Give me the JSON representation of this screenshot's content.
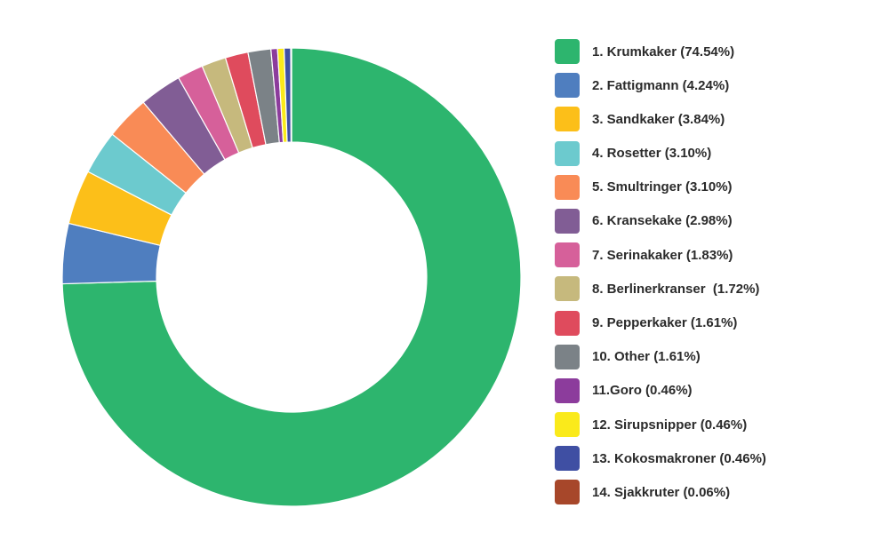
{
  "chart_data": {
    "type": "pie",
    "variant": "donut",
    "title": "",
    "legend_position": "right",
    "start_angle_position": "top",
    "direction": "clockwise",
    "slices": [
      {
        "label": "1. Krumkaker (74.54%)",
        "value": 74.54,
        "color": "#2db56e"
      },
      {
        "label": "2. Fattigmann (4.24%)",
        "value": 4.24,
        "color": "#4f7ebf"
      },
      {
        "label": "3. Sandkaker (3.84%)",
        "value": 3.84,
        "color": "#fcbf19"
      },
      {
        "label": "4. Rosetter (3.10%)",
        "value": 3.1,
        "color": "#6ccace"
      },
      {
        "label": "5. Smultringer (3.10%)",
        "value": 3.1,
        "color": "#f98b56"
      },
      {
        "label": "6. Kransekake (2.98%)",
        "value": 2.98,
        "color": "#815d95"
      },
      {
        "label": "7. Serinakaker (1.83%)",
        "value": 1.83,
        "color": "#d6609a"
      },
      {
        "label": "8. Berlinerkranser  (1.72%)",
        "value": 1.72,
        "color": "#c6b97d"
      },
      {
        "label": "9. Pepperkaker (1.61%)",
        "value": 1.61,
        "color": "#df4b5d"
      },
      {
        "label": "10. Other (1.61%)",
        "value": 1.61,
        "color": "#7b8287"
      },
      {
        "label": "11.Goro (0.46%)",
        "value": 0.46,
        "color": "#8c3c9c"
      },
      {
        "label": "12. Sirupsnipper (0.46%)",
        "value": 0.46,
        "color": "#faea1b"
      },
      {
        "label": "13. Kokosmakroner (0.46%)",
        "value": 0.46,
        "color": "#3f4fa3"
      },
      {
        "label": "14. Sjakkruter (0.06%)",
        "value": 0.06,
        "color": "#a7472a"
      }
    ]
  }
}
